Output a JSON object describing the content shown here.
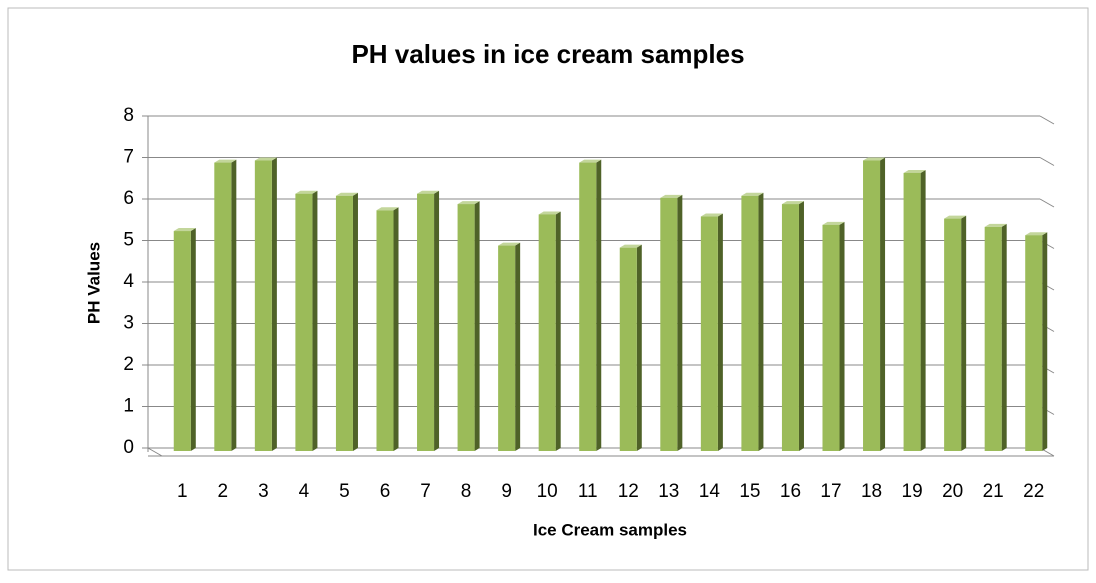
{
  "chart_data": {
    "type": "bar",
    "title": "PH values in ice cream samples",
    "x_label": "Ice Cream samples",
    "y_label": "PH   Values",
    "categories": [
      "1",
      "2",
      "3",
      "4",
      "5",
      "6",
      "7",
      "8",
      "9",
      "10",
      "11",
      "12",
      "13",
      "14",
      "15",
      "16",
      "17",
      "18",
      "19",
      "20",
      "21",
      "22"
    ],
    "values": [
      5.3,
      6.95,
      7.0,
      6.2,
      6.15,
      5.8,
      6.2,
      5.95,
      4.95,
      5.7,
      6.95,
      4.9,
      6.1,
      5.65,
      6.15,
      5.95,
      5.45,
      7.0,
      6.7,
      5.6,
      5.4,
      5.2
    ],
    "color": "#9bbb59",
    "ylim": [
      0,
      8
    ],
    "yticks": [
      0,
      1,
      2,
      3,
      4,
      5,
      6,
      7,
      8
    ],
    "grid": true
  }
}
